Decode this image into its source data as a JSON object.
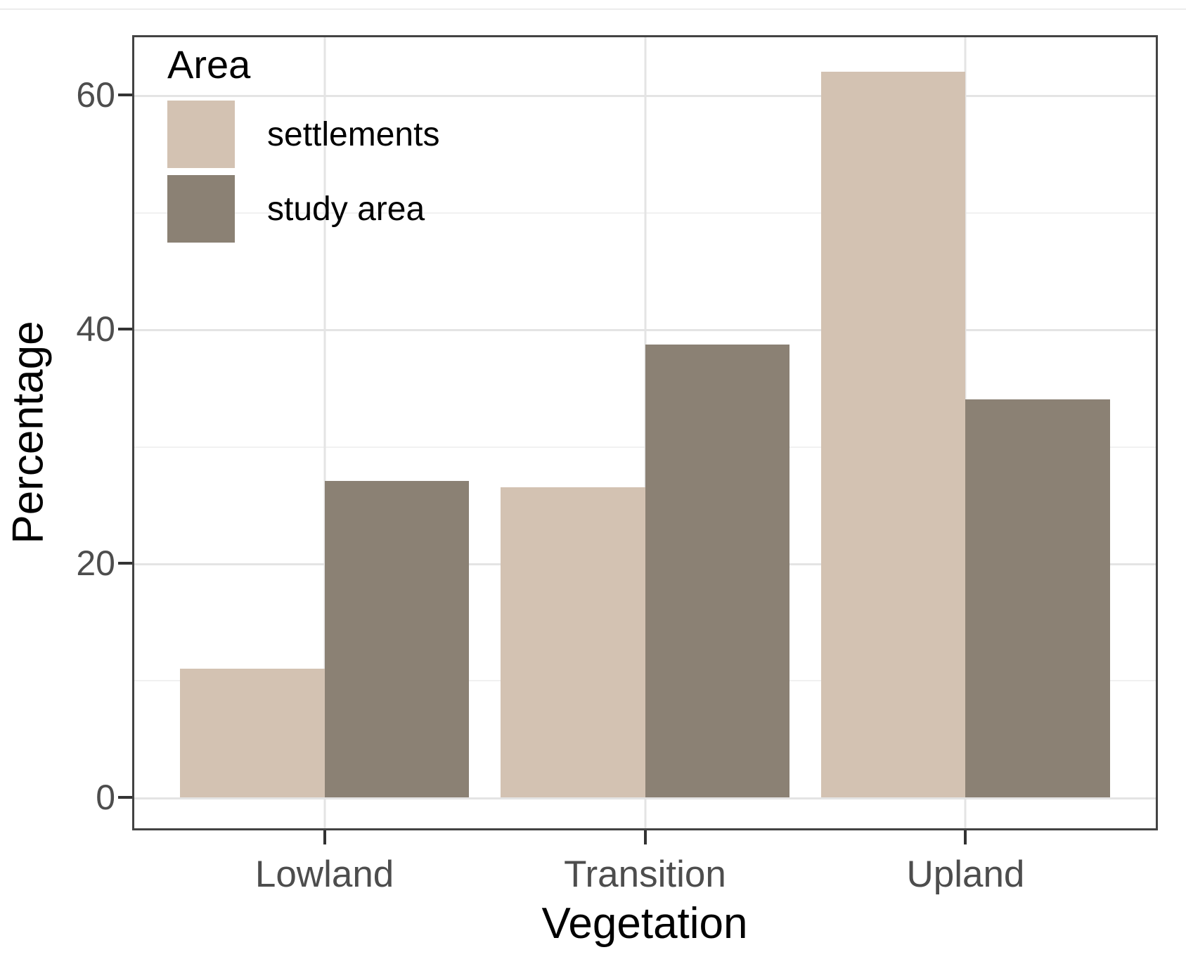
{
  "chart_data": {
    "type": "bar",
    "title": "",
    "xlabel": "Vegetation",
    "ylabel": "Percentage",
    "categories": [
      "Lowland",
      "Transition",
      "Upland"
    ],
    "series": [
      {
        "name": "settlements",
        "color": "#d3c2b2",
        "values": [
          11,
          26.5,
          62
        ]
      },
      {
        "name": "study area",
        "color": "#8b8174",
        "values": [
          27,
          38.7,
          34
        ]
      }
    ],
    "legend": {
      "title": "Area",
      "position": "top-left-inside"
    },
    "y_ticks": [
      0,
      20,
      40,
      60
    ],
    "y_minor_ticks": [
      10,
      30,
      50
    ],
    "ylim": [
      0,
      65
    ],
    "grid": true,
    "colors": {
      "grid_major": "#e4e4e4",
      "grid_minor": "#f1f1f1",
      "panel_border": "#434343",
      "tick_label": "#4d4d4d",
      "axis_title": "#000000",
      "background": "#ffffff"
    }
  }
}
